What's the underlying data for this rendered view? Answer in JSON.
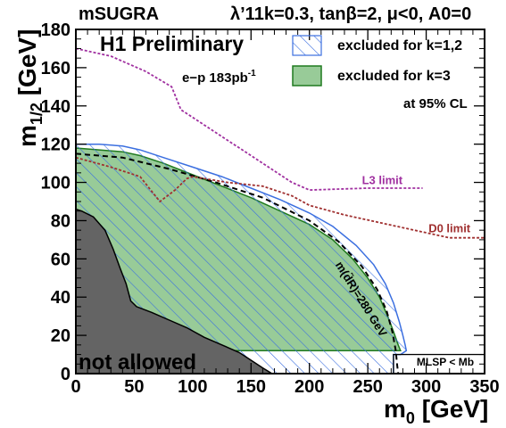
{
  "chart_data": {
    "type": "area",
    "header_left": "mSUGRA",
    "header_right": "λ’11k=0.3, tanβ=2, μ<0, A0=0",
    "title": "H1 Preliminary",
    "luminosity": "e−p 183pb",
    "luminosity_sup": "-1",
    "cl_label": "at 95% CL",
    "xlabel": "m",
    "xlabel_sub": "0",
    "xlabel_unit": " [GeV]",
    "ylabel": "m",
    "ylabel_sub": "1/2",
    "ylabel_unit": " [GeV]",
    "xlim": [
      0,
      350
    ],
    "ylim": [
      0,
      180
    ],
    "x_ticks": [
      0,
      50,
      100,
      150,
      200,
      250,
      300,
      350
    ],
    "y_ticks": [
      0,
      20,
      40,
      60,
      80,
      100,
      120,
      140,
      160,
      180
    ],
    "legend": [
      {
        "label": "excluded for k=1,2",
        "style": "hatched-blue"
      },
      {
        "label": "excluded for k=3",
        "style": "filled-green"
      }
    ],
    "colors": {
      "hatch": "#3b6fe0",
      "green_fill": "#98cb98",
      "green_edge": "#1f7a1f",
      "not_allowed": "#646464",
      "l3": "#a030a0",
      "d0": "#a03030"
    },
    "not_allowed_label": "not allowed",
    "not_allowed_region": [
      [
        0,
        86
      ],
      [
        5,
        85
      ],
      [
        15,
        82
      ],
      [
        25,
        75
      ],
      [
        32,
        65
      ],
      [
        38,
        55
      ],
      [
        43,
        47
      ],
      [
        47,
        38
      ],
      [
        52,
        35
      ],
      [
        65,
        32
      ],
      [
        80,
        28
      ],
      [
        95,
        24
      ],
      [
        110,
        19
      ],
      [
        125,
        15
      ],
      [
        140,
        11
      ],
      [
        150,
        7
      ],
      [
        160,
        3
      ],
      [
        168,
        0
      ],
      [
        0,
        0
      ]
    ],
    "excluded_k12": [
      [
        0,
        120
      ],
      [
        20,
        120
      ],
      [
        40,
        119
      ],
      [
        55,
        117
      ],
      [
        75,
        113
      ],
      [
        100,
        108
      ],
      [
        125,
        103
      ],
      [
        150,
        97
      ],
      [
        175,
        91
      ],
      [
        200,
        84
      ],
      [
        220,
        77
      ],
      [
        240,
        67
      ],
      [
        255,
        57
      ],
      [
        265,
        47
      ],
      [
        272,
        37
      ],
      [
        277,
        27
      ],
      [
        280,
        20
      ],
      [
        282,
        15
      ],
      [
        283,
        12
      ],
      [
        278,
        10
      ],
      [
        272,
        10
      ],
      [
        272,
        0
      ],
      [
        0,
        0
      ]
    ],
    "excluded_k3": [
      [
        0,
        118
      ],
      [
        20,
        117
      ],
      [
        40,
        116
      ],
      [
        55,
        114
      ],
      [
        75,
        110
      ],
      [
        100,
        104
      ],
      [
        125,
        98
      ],
      [
        150,
        92
      ],
      [
        175,
        85
      ],
      [
        200,
        78
      ],
      [
        220,
        70
      ],
      [
        237,
        60
      ],
      [
        250,
        50
      ],
      [
        260,
        40
      ],
      [
        267,
        30
      ],
      [
        272,
        22
      ],
      [
        276,
        15
      ],
      [
        278,
        12
      ],
      [
        272,
        12
      ],
      [
        0,
        12
      ]
    ],
    "mass_contour_label": "m(d̃R)=280 GeV",
    "mass_contour": [
      [
        0,
        115
      ],
      [
        40,
        113
      ],
      [
        80,
        107
      ],
      [
        120,
        100
      ],
      [
        160,
        92
      ],
      [
        200,
        80
      ],
      [
        225,
        69
      ],
      [
        245,
        56
      ],
      [
        258,
        44
      ],
      [
        266,
        33
      ],
      [
        271,
        22
      ],
      [
        274,
        12
      ],
      [
        275,
        5
      ],
      [
        276,
        0
      ]
    ],
    "lsp_label": "MLSP < Mb",
    "lsp_box_x": [
      272,
      350
    ],
    "lsp_box_y": [
      0,
      10
    ],
    "l3_label": "L3 limit",
    "l3_limit": [
      [
        0,
        170
      ],
      [
        30,
        166
      ],
      [
        60,
        158
      ],
      [
        82,
        150
      ],
      [
        90,
        138
      ],
      [
        110,
        130
      ],
      [
        130,
        122
      ],
      [
        150,
        114
      ],
      [
        170,
        106
      ],
      [
        185,
        100
      ],
      [
        200,
        96
      ],
      [
        250,
        97
      ],
      [
        297,
        97
      ]
    ],
    "d0_label": "D0 limit",
    "d0_limit": [
      [
        0,
        113
      ],
      [
        30,
        108
      ],
      [
        55,
        103
      ],
      [
        68,
        93
      ],
      [
        72,
        90
      ],
      [
        85,
        96
      ],
      [
        95,
        102
      ],
      [
        100,
        103
      ],
      [
        130,
        100
      ],
      [
        160,
        98
      ],
      [
        185,
        93
      ],
      [
        200,
        88
      ],
      [
        230,
        83
      ],
      [
        260,
        79
      ],
      [
        290,
        75
      ],
      [
        320,
        71
      ],
      [
        330,
        71
      ],
      [
        350,
        71
      ]
    ]
  }
}
